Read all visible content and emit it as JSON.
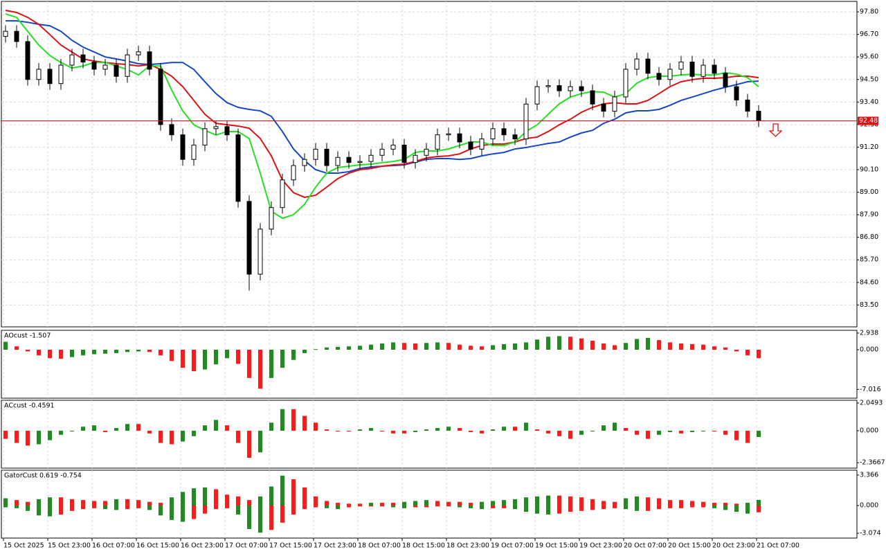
{
  "chart_data": [
    {
      "type": "candlestick",
      "categories": [
        "15 Oct 2025",
        null,
        null,
        null,
        "15 Oct 23:00",
        null,
        null,
        null,
        "16 Oct 07:00",
        null,
        null,
        null,
        "16 Oct 15:00",
        null,
        null,
        null,
        "16 Oct 23:00",
        null,
        null,
        null,
        "17 Oct 07:00",
        null,
        null,
        null,
        "17 Oct 15:00",
        null,
        null,
        null,
        "17 Oct 23:00",
        null,
        null,
        null,
        "18 Oct 07:00",
        null,
        null,
        null,
        "18 Oct 15:00",
        null,
        null,
        null,
        "18 Oct 23:00",
        null,
        null,
        null,
        "19 Oct 07:00",
        null,
        null,
        null,
        "19 Oct 15:00",
        null,
        null,
        null,
        "19 Oct 23:00",
        null,
        null,
        null,
        "20 Oct 07:00",
        null,
        null,
        null,
        "20 Oct 15:00",
        null,
        null,
        null,
        "20 Oct 23:00",
        null,
        null,
        null,
        "21 Oct 07:00"
      ],
      "open": [
        96.6,
        96.85,
        96.35,
        94.5,
        95.0,
        94.3,
        95.2,
        95.7,
        95.35,
        95.0,
        95.2,
        94.65,
        95.7,
        95.85,
        95.0,
        92.3,
        91.8,
        90.6,
        91.3,
        92.1,
        92.2,
        91.8,
        88.55,
        85.0,
        87.2,
        88.25,
        89.6,
        90.3,
        90.6,
        91.1,
        90.3,
        90.7,
        90.45,
        90.5,
        90.8,
        91.1,
        91.3,
        90.45,
        90.8,
        91.1,
        91.8,
        91.85,
        91.45,
        91.1,
        91.6,
        92.1,
        91.8,
        91.6,
        93.3,
        94.15,
        94.2,
        93.95,
        94.15,
        93.95,
        93.3,
        92.95,
        93.65,
        95.0,
        95.5,
        94.8,
        94.5,
        95.0,
        95.35,
        94.65,
        95.2,
        94.8,
        94.15,
        93.5,
        92.95
      ],
      "high": [
        97.15,
        97.15,
        96.65,
        95.3,
        95.3,
        95.5,
        96.0,
        96.0,
        95.65,
        95.5,
        95.5,
        96.0,
        96.15,
        96.15,
        95.3,
        92.6,
        92.1,
        91.6,
        92.4,
        92.5,
        92.5,
        92.1,
        88.85,
        87.5,
        88.55,
        89.9,
        90.6,
        90.9,
        91.4,
        91.4,
        91.0,
        91.0,
        90.8,
        91.1,
        91.4,
        91.6,
        91.6,
        91.1,
        91.4,
        92.1,
        92.15,
        92.15,
        91.75,
        91.9,
        92.4,
        92.4,
        92.1,
        93.6,
        94.45,
        94.5,
        94.5,
        94.45,
        94.45,
        94.25,
        93.6,
        93.95,
        95.3,
        95.8,
        95.8,
        95.1,
        95.3,
        95.65,
        95.65,
        95.5,
        95.5,
        95.1,
        94.45,
        93.8,
        93.25
      ],
      "low": [
        96.3,
        96.05,
        94.2,
        94.2,
        94.0,
        94.0,
        94.9,
        95.05,
        94.7,
        94.7,
        94.35,
        94.35,
        95.4,
        94.7,
        92.0,
        91.5,
        90.3,
        90.3,
        91.0,
        91.8,
        91.5,
        88.25,
        84.2,
        84.7,
        86.9,
        87.95,
        89.3,
        90.0,
        90.3,
        90.0,
        90.0,
        90.15,
        90.15,
        90.2,
        90.5,
        90.8,
        90.15,
        90.15,
        90.5,
        90.8,
        91.5,
        91.15,
        90.8,
        90.8,
        91.3,
        91.5,
        91.3,
        91.3,
        93.0,
        93.85,
        93.65,
        93.65,
        93.65,
        93.0,
        92.65,
        92.65,
        93.35,
        94.7,
        94.5,
        94.2,
        94.2,
        94.7,
        94.35,
        94.35,
        94.5,
        93.85,
        93.2,
        92.65,
        92.18
      ],
      "close": [
        96.85,
        96.35,
        94.5,
        95.0,
        94.3,
        95.2,
        95.7,
        95.35,
        95.0,
        95.2,
        94.65,
        95.7,
        95.85,
        95.0,
        92.3,
        91.8,
        90.6,
        91.3,
        92.1,
        92.2,
        91.8,
        88.55,
        85.0,
        87.2,
        88.25,
        89.6,
        90.3,
        90.6,
        91.1,
        90.3,
        90.7,
        90.45,
        90.5,
        90.8,
        91.1,
        91.3,
        90.45,
        90.8,
        91.1,
        91.8,
        91.85,
        91.45,
        91.1,
        91.6,
        92.1,
        91.8,
        91.6,
        93.3,
        94.15,
        94.2,
        93.95,
        94.15,
        93.95,
        93.3,
        92.95,
        93.65,
        95.0,
        95.5,
        94.8,
        94.5,
        95.0,
        95.35,
        94.65,
        95.2,
        94.8,
        94.15,
        93.5,
        92.95,
        92.48
      ],
      "series": [
        {
          "color": "#1446c8",
          "values": [
            97.36,
            97.36,
            97.29,
            97.19,
            97.12,
            96.85,
            96.41,
            96.08,
            95.84,
            95.6,
            95.5,
            95.4,
            95.27,
            95.23,
            95.27,
            95.33,
            95.33,
            94.99,
            94.39,
            93.81,
            93.37,
            93.14,
            93.04,
            92.97,
            92.7,
            91.96,
            91.11,
            90.54,
            90.1,
            89.93,
            89.93,
            90.0,
            90.16,
            90.23,
            90.27,
            90.3,
            90.33,
            90.47,
            90.6,
            90.64,
            90.64,
            90.6,
            90.64,
            90.77,
            90.87,
            90.94,
            91.11,
            91.18,
            91.28,
            91.38,
            91.45,
            91.69,
            91.89,
            92.02,
            92.36,
            92.56,
            92.87,
            92.97,
            92.97,
            93.04,
            93.24,
            93.48,
            93.64,
            93.81,
            93.98,
            94.12,
            94.25,
            94.39,
            94.42
          ]
        },
        {
          "color": "#e01010",
          "values": [
            97.87,
            97.77,
            97.53,
            97.19,
            96.69,
            96.18,
            95.84,
            95.5,
            95.4,
            95.33,
            95.27,
            95.23,
            95.16,
            95.23,
            94.99,
            94.66,
            94.15,
            93.48,
            92.8,
            92.36,
            92.29,
            92.23,
            92.12,
            91.62,
            90.77,
            89.59,
            88.98,
            88.75,
            88.85,
            89.25,
            89.66,
            89.93,
            90.1,
            90.16,
            90.27,
            90.33,
            90.37,
            90.5,
            90.67,
            90.74,
            90.77,
            90.87,
            91.11,
            91.28,
            91.35,
            91.35,
            91.45,
            91.62,
            91.69,
            91.96,
            92.29,
            92.56,
            92.9,
            93.14,
            93.31,
            93.37,
            93.31,
            93.31,
            93.48,
            93.81,
            94.15,
            94.39,
            94.49,
            94.56,
            94.56,
            94.59,
            94.66,
            94.66,
            94.59
          ]
        },
        {
          "color": "#22e022",
          "values": [
            97.7,
            97.53,
            96.85,
            96.18,
            95.67,
            95.33,
            95.06,
            95.16,
            95.33,
            95.33,
            95.16,
            94.99,
            94.72,
            95.16,
            95.16,
            93.98,
            92.97,
            92.29,
            92.02,
            91.79,
            91.96,
            91.96,
            91.62,
            89.93,
            88.07,
            87.73,
            87.9,
            88.41,
            89.25,
            89.93,
            90.2,
            90.27,
            90.33,
            90.37,
            90.44,
            90.5,
            90.6,
            90.94,
            91.01,
            91.01,
            91.11,
            91.28,
            91.45,
            91.45,
            91.28,
            91.28,
            91.45,
            91.96,
            92.29,
            92.8,
            93.31,
            93.64,
            93.81,
            93.91,
            93.88,
            93.64,
            93.81,
            94.32,
            94.59,
            94.66,
            94.66,
            94.72,
            94.76,
            94.72,
            94.72,
            94.83,
            94.76,
            94.59,
            94.15
          ]
        }
      ],
      "last_price": 92.48,
      "last_price_color": "#e01010",
      "ylim": [
        82.43,
        98.31
      ],
      "yticks": [
        {
          "value": 97.8,
          "label": "97.80"
        },
        {
          "value": 96.7,
          "label": "96.70"
        },
        {
          "value": 95.6,
          "label": "95.60"
        },
        {
          "value": 94.5,
          "label": "94.50"
        },
        {
          "value": 93.4,
          "label": "93.40"
        },
        {
          "value": 92.3,
          "label": "92.30"
        },
        {
          "value": 91.2,
          "label": "91.20"
        },
        {
          "value": 90.1,
          "label": "90.10"
        },
        {
          "value": 89.0,
          "label": "89.00"
        },
        {
          "value": 87.9,
          "label": "87.90"
        },
        {
          "value": 86.8,
          "label": "86.80"
        },
        {
          "value": 85.7,
          "label": "85.70"
        },
        {
          "value": 84.6,
          "label": "84.60"
        },
        {
          "value": 83.5,
          "label": "83.50"
        }
      ],
      "grid": true
    },
    {
      "type": "histogram",
      "title": "AOcust -1.507",
      "up_color": "#1e8c1e",
      "down_color": "#ff1a1a",
      "values": [
        1.4,
        0.6,
        -0.3,
        -1.0,
        -1.5,
        -1.6,
        -1.3,
        -1.0,
        -0.8,
        -0.7,
        -0.6,
        -0.4,
        -0.3,
        -0.4,
        -1.0,
        -2.0,
        -3.2,
        -3.8,
        -3.5,
        -2.6,
        -1.5,
        -2.5,
        -5.0,
        -6.9,
        -5.0,
        -3.2,
        -1.8,
        -0.6,
        0.1,
        0.4,
        0.5,
        0.6,
        0.7,
        0.9,
        1.1,
        1.3,
        1.2,
        1.1,
        1.2,
        1.3,
        1.2,
        0.9,
        0.7,
        0.6,
        0.8,
        1.0,
        1.1,
        1.3,
        1.8,
        2.3,
        2.4,
        2.3,
        2.0,
        1.6,
        1.1,
        0.8,
        1.2,
        1.9,
        2.1,
        1.7,
        1.3,
        1.1,
        1.0,
        0.9,
        0.6,
        0.4,
        -0.3,
        -1.0,
        -1.5
      ],
      "ylim": [
        -8.57,
        3.43
      ],
      "yticks": [
        2.938,
        {
          "value": 0,
          "label": "0.000"
        },
        -7.016
      ],
      "grid": true
    },
    {
      "type": "histogram",
      "title": "ACcust -0.4591",
      "up_color": "#1e8c1e",
      "down_color": "#ff1a1a",
      "values": [
        -0.6,
        -0.9,
        -1.1,
        -1.0,
        -0.7,
        -0.3,
        0.0,
        0.3,
        0.4,
        -0.1,
        0.2,
        0.5,
        0.5,
        -0.2,
        -0.9,
        -1.0,
        -0.8,
        -0.4,
        0.4,
        0.8,
        0.4,
        -0.9,
        -2.0,
        -1.6,
        0.6,
        1.6,
        1.6,
        1.1,
        0.6,
        0.1,
        0.0,
        0.0,
        0.1,
        0.2,
        0.0,
        -0.2,
        -0.2,
        -0.1,
        0.1,
        0.2,
        0.3,
        0.2,
        -0.1,
        -0.2,
        0.1,
        0.3,
        0.3,
        0.6,
        0.1,
        -0.2,
        -0.4,
        -0.6,
        -0.3,
        0.0,
        0.4,
        0.6,
        0.2,
        -0.3,
        -0.6,
        -0.3,
        -0.1,
        -0.2,
        -0.1,
        0.0,
        0.0,
        -0.3,
        -0.7,
        -0.9,
        -0.46
      ],
      "ylim": [
        -2.766,
        2.254
      ],
      "yticks": [
        2.0493,
        {
          "value": 0,
          "label": "0.000"
        },
        -2.3667
      ],
      "grid": true
    },
    {
      "type": "gator",
      "title": "GatorCust 0.619 -0.754",
      "up_color": "#1e8c1e",
      "down_color": "#ff1a1a",
      "upper": [
        0.8,
        0.6,
        0.4,
        0.7,
        0.9,
        0.9,
        0.7,
        0.6,
        0.5,
        0.5,
        0.7,
        0.7,
        0.6,
        0.4,
        0.3,
        0.9,
        1.5,
        1.9,
        2.0,
        1.8,
        1.2,
        1.0,
        0.6,
        1.0,
        2.1,
        3.3,
        2.9,
        2.0,
        1.0,
        0.5,
        0.3,
        0.2,
        0.2,
        0.3,
        0.3,
        0.3,
        0.4,
        0.5,
        0.6,
        0.5,
        0.4,
        0.4,
        0.3,
        0.4,
        0.5,
        0.6,
        0.7,
        0.9,
        1.0,
        1.1,
        1.1,
        1.0,
        0.9,
        0.7,
        0.5,
        0.4,
        0.8,
        1.0,
        0.9,
        0.8,
        0.6,
        0.6,
        0.5,
        0.4,
        0.3,
        0.3,
        0.2,
        0.3,
        0.62
      ],
      "lower": [
        -0.2,
        -0.3,
        -0.6,
        -1.1,
        -1.2,
        -1.0,
        -0.6,
        -0.4,
        -0.3,
        -0.4,
        -0.5,
        -0.4,
        -0.3,
        -0.5,
        -1.1,
        -1.6,
        -1.8,
        -1.5,
        -0.9,
        -0.4,
        -0.3,
        -1.0,
        -2.6,
        -3.0,
        -2.7,
        -1.9,
        -1.0,
        -0.4,
        -0.2,
        -0.3,
        -0.4,
        -0.2,
        -0.1,
        -0.1,
        -0.1,
        -0.2,
        -0.3,
        -0.2,
        -0.2,
        -0.1,
        -0.1,
        -0.2,
        -0.3,
        -0.4,
        -0.3,
        -0.3,
        -0.4,
        -0.7,
        -0.9,
        -1.0,
        -0.9,
        -0.7,
        -0.6,
        -0.5,
        -0.4,
        -0.3,
        -0.4,
        -0.6,
        -0.6,
        -0.4,
        -0.3,
        -0.3,
        -0.2,
        -0.2,
        -0.3,
        -0.5,
        -0.7,
        -0.9,
        -0.75
      ],
      "ylim": [
        -3.6,
        3.9
      ],
      "yticks": [
        3.366,
        {
          "value": 0,
          "label": "0.000"
        },
        -3.074
      ],
      "grid": true
    }
  ]
}
